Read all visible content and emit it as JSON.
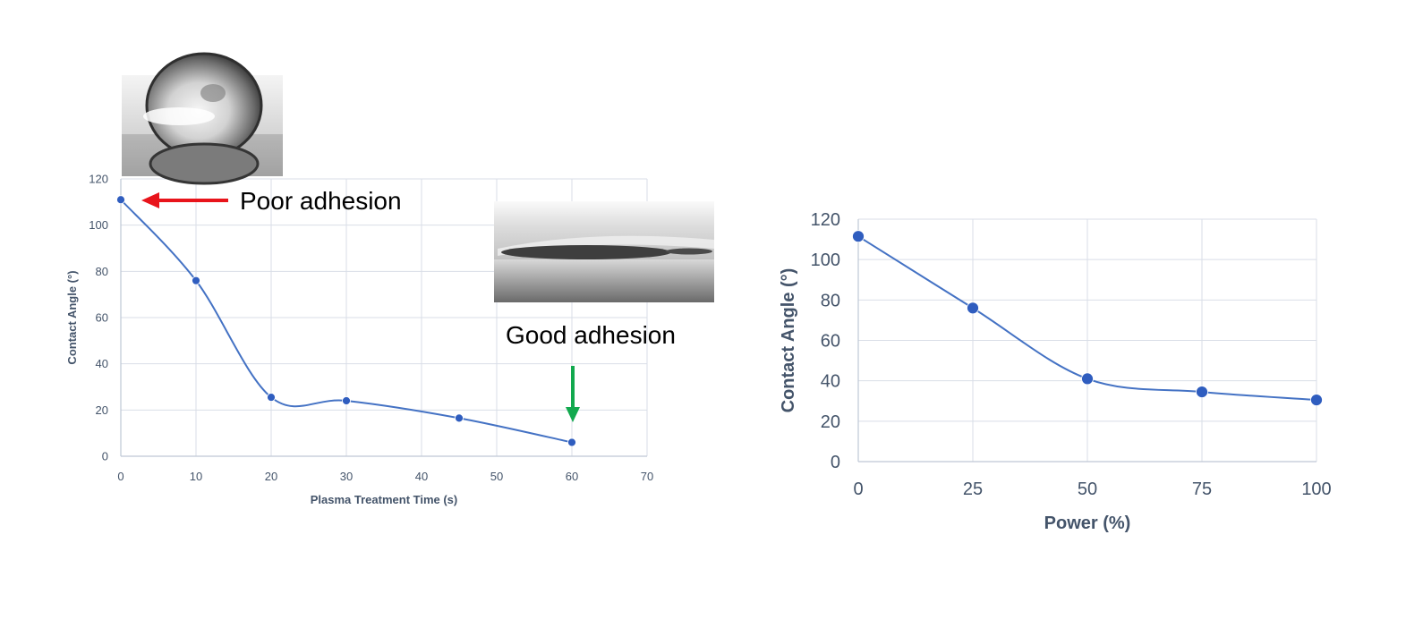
{
  "colors": {
    "series": "#4472C4",
    "marker": "#2F5DBF",
    "axis_text": "#44546A",
    "grid": "#D9DEE7",
    "poor_arrow": "#E8141B",
    "good_arrow": "#12A94E"
  },
  "annotations": {
    "poor": "Poor adhesion",
    "good": "Good adhesion"
  },
  "images": [
    {
      "name": "droplet-high-contact-angle-image"
    },
    {
      "name": "droplet-low-contact-angle-image"
    }
  ],
  "chart_data": [
    {
      "type": "line",
      "smooth": true,
      "xlabel": "Plasma Treatment Time (s)",
      "ylabel": "Contact Angle (°)",
      "xlim": [
        0,
        70
      ],
      "ylim": [
        0,
        120
      ],
      "xticks": [
        0,
        10,
        20,
        30,
        40,
        50,
        60,
        70
      ],
      "yticks": [
        0,
        20,
        40,
        60,
        80,
        100,
        120
      ],
      "grid": true,
      "series": [
        {
          "x": [
            0,
            10,
            20,
            30,
            45,
            60
          ],
          "y": [
            111,
            76,
            25.5,
            24,
            16.5,
            6
          ]
        }
      ]
    },
    {
      "type": "line",
      "smooth": true,
      "xlabel": "Power (%)",
      "ylabel": "Contact Angle (°)",
      "xlim": [
        0,
        100
      ],
      "ylim": [
        0,
        120
      ],
      "xticks": [
        0,
        25,
        50,
        75,
        100
      ],
      "yticks": [
        0,
        20,
        40,
        60,
        80,
        100,
        120
      ],
      "grid": true,
      "series": [
        {
          "x": [
            0,
            25,
            50,
            75,
            100
          ],
          "y": [
            111.5,
            76,
            41,
            34.5,
            30.5
          ]
        }
      ]
    }
  ]
}
